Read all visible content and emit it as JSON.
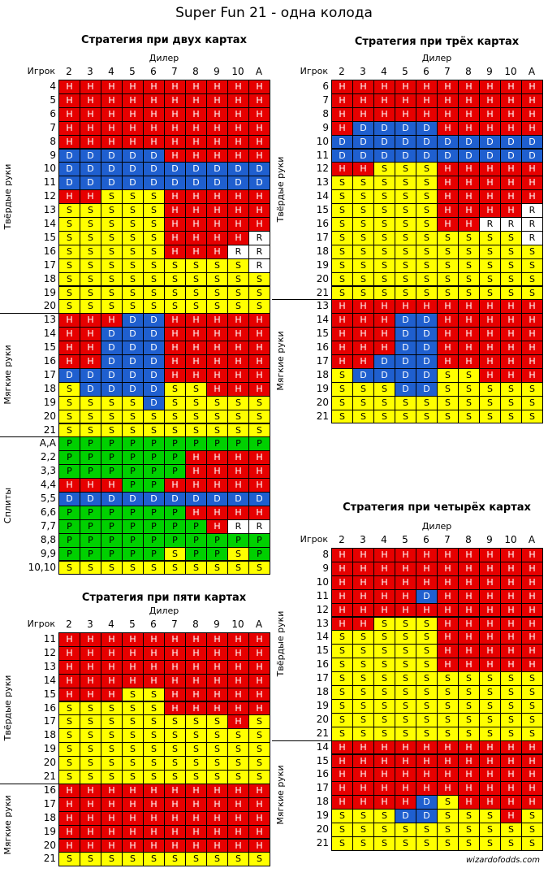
{
  "title": "Super Fun 21 - одна колода",
  "footer": "wizardofodds.com",
  "dealer_label": "Дилер",
  "player_label": "Игрок",
  "dealer_cards": [
    "2",
    "3",
    "4",
    "5",
    "6",
    "7",
    "8",
    "9",
    "10",
    "A"
  ],
  "legend_colors": {
    "H": "#e60000",
    "D": "#1f5fcf",
    "S": "#ffff00",
    "P": "#00d000",
    "R": "#ffffff"
  },
  "tables": [
    {
      "id": "two-cards",
      "title": "Стратегия при двух картах",
      "groups": [
        {
          "label": "Твёрдые руки",
          "rows": [
            [
              "4",
              "HHHHHHHHHH"
            ],
            [
              "5",
              "HHHHHHHHHH"
            ],
            [
              "6",
              "HHHHHHHHHH"
            ],
            [
              "7",
              "HHHHHHHHHH"
            ],
            [
              "8",
              "HHHHHHHHHH"
            ],
            [
              "9",
              "DDDDDHHHHH"
            ],
            [
              "10",
              "DDDDDDDDDD"
            ],
            [
              "11",
              "DDDDDDDDDD"
            ],
            [
              "12",
              "HHSSSHHHHH"
            ],
            [
              "13",
              "SSSSSHHHHH"
            ],
            [
              "14",
              "SSSSSHHHHH"
            ],
            [
              "15",
              "SSSSSHHHHR"
            ],
            [
              "16",
              "SSSSSHHHRR"
            ],
            [
              "17",
              "SSSSSSSSSR"
            ],
            [
              "18",
              "SSSSSSSSSS"
            ],
            [
              "19",
              "SSSSSSSSSS"
            ],
            [
              "20",
              "SSSSSSSSSS"
            ]
          ]
        },
        {
          "label": "Мягкие руки",
          "rows": [
            [
              "13",
              "HHHDDHHHHH"
            ],
            [
              "14",
              "HHDDDHHHHH"
            ],
            [
              "15",
              "HHDDDHHHHH"
            ],
            [
              "16",
              "HHDDDHHHHH"
            ],
            [
              "17",
              "DDDDDHHHHH"
            ],
            [
              "18",
              "SDDDDSSHHH"
            ],
            [
              "19",
              "SSSSDSSSSS"
            ],
            [
              "20",
              "SSSSSSSSSS"
            ],
            [
              "21",
              "SSSSSSSSSS"
            ]
          ]
        },
        {
          "label": "Сплиты",
          "rows": [
            [
              "A,A",
              "PPPPPPPPPP"
            ],
            [
              "2,2",
              "PPPPPPHHHH"
            ],
            [
              "3,3",
              "PPPPPPHHHH"
            ],
            [
              "4,4",
              "HHHPPHHHHH"
            ],
            [
              "5,5",
              "DDDDDDDDDD"
            ],
            [
              "6,6",
              "PPPPPPHHHH"
            ],
            [
              "7,7",
              "PPPPPPPHRR"
            ],
            [
              "8,8",
              "PPPPPPPPPP"
            ],
            [
              "9,9",
              "PPPPPSPPSP"
            ],
            [
              "10,10",
              "SSSSSSSSSS"
            ]
          ]
        }
      ]
    },
    {
      "id": "three-cards",
      "title": "Стратегия при трёх картах",
      "groups": [
        {
          "label": "Твёрдые руки",
          "rows": [
            [
              "6",
              "HHHHHHHHHH"
            ],
            [
              "7",
              "HHHHHHHHHH"
            ],
            [
              "8",
              "HHHHHHHHHH"
            ],
            [
              "9",
              "HDDDDHHHHH"
            ],
            [
              "10",
              "DDDDDDDDDD"
            ],
            [
              "11",
              "DDDDDDDDDD"
            ],
            [
              "12",
              "HHSSSHHHHH"
            ],
            [
              "13",
              "SSSSSHHHHH"
            ],
            [
              "14",
              "SSSSSHHHHH"
            ],
            [
              "15",
              "SSSSSHHHHR"
            ],
            [
              "16",
              "SSSSSHHRRR"
            ],
            [
              "17",
              "SSSSSSSSSR"
            ],
            [
              "18",
              "SSSSSSSSSS"
            ],
            [
              "19",
              "SSSSSSSSSS"
            ],
            [
              "20",
              "SSSSSSSSSS"
            ],
            [
              "21",
              "SSSSSSSSSS"
            ]
          ]
        },
        {
          "label": "Мягкие руки",
          "rows": [
            [
              "13",
              "HHHHHHHHHH"
            ],
            [
              "14",
              "HHHDDHHHHH"
            ],
            [
              "15",
              "HHHDDHHHHH"
            ],
            [
              "16",
              "HHHDDHHHHH"
            ],
            [
              "17",
              "HHDDDHHHHH"
            ],
            [
              "18",
              "SDDDDSSHHH"
            ],
            [
              "19",
              "SSSDDSSSSS"
            ],
            [
              "20",
              "SSSSSSSSSS"
            ],
            [
              "21",
              "SSSSSSSSSS"
            ]
          ]
        }
      ]
    },
    {
      "id": "four-cards",
      "title": "Стратегия при четырёх картах",
      "groups": [
        {
          "label": "Твёрдые руки",
          "rows": [
            [
              "8",
              "HHHHHHHHHH"
            ],
            [
              "9",
              "HHHHHHHHHH"
            ],
            [
              "10",
              "HHHHHHHHHH"
            ],
            [
              "11",
              "HHHHDHHHHH"
            ],
            [
              "12",
              "HHHHHHHHHH"
            ],
            [
              "13",
              "HHSSSHHHHH"
            ],
            [
              "14",
              "SSSSSHHHHH"
            ],
            [
              "15",
              "SSSSSHHHHH"
            ],
            [
              "16",
              "SSSSSHHHHH"
            ],
            [
              "17",
              "SSSSSSSSSS"
            ],
            [
              "18",
              "SSSSSSSSSS"
            ],
            [
              "19",
              "SSSSSSSSSS"
            ],
            [
              "20",
              "SSSSSSSSSS"
            ],
            [
              "21",
              "SSSSSSSSSS"
            ]
          ]
        },
        {
          "label": "Мягкие руки",
          "rows": [
            [
              "14",
              "HHHHHHHHHH"
            ],
            [
              "15",
              "HHHHHHHHHH"
            ],
            [
              "16",
              "HHHHHHHHHH"
            ],
            [
              "17",
              "HHHHHHHHHH"
            ],
            [
              "18",
              "HHHHDSHHHH"
            ],
            [
              "19",
              "SSSDDSSSHS"
            ],
            [
              "20",
              "SSSSSSSSSS"
            ],
            [
              "21",
              "SSSSSSSSSS"
            ]
          ]
        }
      ]
    },
    {
      "id": "five-cards",
      "title": "Стратегия при пяти картах",
      "groups": [
        {
          "label": "Твёрдые руки",
          "rows": [
            [
              "11",
              "HHHHHHHHHH"
            ],
            [
              "12",
              "HHHHHHHHHH"
            ],
            [
              "13",
              "HHHHHHHHHH"
            ],
            [
              "14",
              "HHHHHHHHHH"
            ],
            [
              "15",
              "HHHSSHHHHH"
            ],
            [
              "16",
              "SSSSSHHHHH"
            ],
            [
              "17",
              "SSSSSSSSHS"
            ],
            [
              "18",
              "SSSSSSSSSS"
            ],
            [
              "19",
              "SSSSSSSSSS"
            ],
            [
              "20",
              "SSSSSSSSSS"
            ],
            [
              "21",
              "SSSSSSSSSS"
            ]
          ]
        },
        {
          "label": "Мягкие руки",
          "rows": [
            [
              "16",
              "HHHHHHHHHH"
            ],
            [
              "17",
              "HHHHHHHHHH"
            ],
            [
              "18",
              "HHHHHHHHHH"
            ],
            [
              "19",
              "HHHHHHHHHH"
            ],
            [
              "20",
              "HHHHHHHHHH"
            ],
            [
              "21",
              "SSSSSSSSSS"
            ]
          ]
        }
      ]
    }
  ]
}
